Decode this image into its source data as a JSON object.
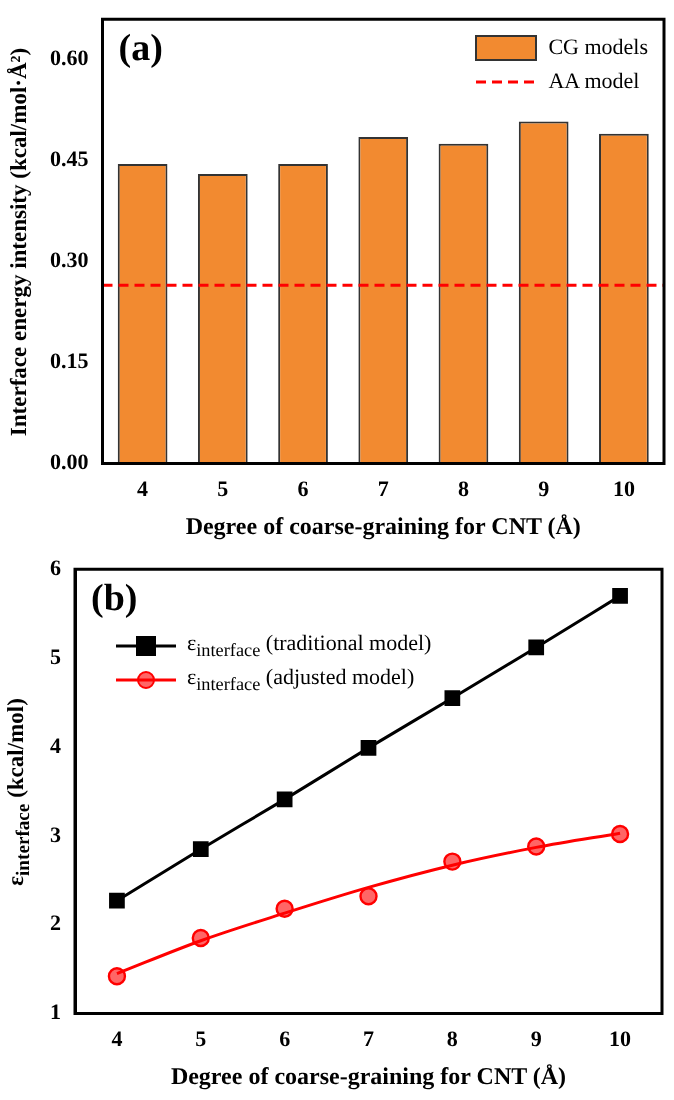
{
  "chart_data": [
    {
      "type": "bar",
      "title": "(a)",
      "xlabel": "Degree of coarse-graining for CNT (Å)",
      "ylabel": "Interface energy intensity (kcal/mol·Å²)",
      "categories": [
        "4",
        "5",
        "6",
        "7",
        "8",
        "9",
        "10"
      ],
      "series": [
        {
          "name": "CG models",
          "color": "#f28a30",
          "values": [
            0.445,
            0.43,
            0.445,
            0.485,
            0.475,
            0.508,
            0.49
          ]
        }
      ],
      "ylim": [
        0,
        0.66
      ],
      "yticks": [
        {
          "value": 0,
          "label": "0.00"
        },
        {
          "value": 0.15,
          "label": "0.15"
        },
        {
          "value": 0.3,
          "label": "0.30"
        },
        {
          "value": 0.45,
          "label": "0.45"
        },
        {
          "value": 0.6,
          "label": "0.60"
        }
      ],
      "ref_lines": [
        {
          "axis": "y",
          "value": 0.265,
          "label": "AA model",
          "color": "#ff0000",
          "line_style": "dashed"
        }
      ],
      "legend": "top right",
      "grid": false
    },
    {
      "type": "line",
      "title": "(b)",
      "xlabel": "Degree of coarse-graining for CNT (Å)",
      "ylabel": "ε$_{interface}$ (kcal/mol)",
      "x": [
        4,
        5,
        6,
        7,
        8,
        9,
        10
      ],
      "xlim": [
        3.5,
        10.5
      ],
      "xticks": [
        4,
        5,
        6,
        7,
        8,
        9,
        10
      ],
      "ylim": [
        1,
        6
      ],
      "yticks": [
        1,
        2,
        3,
        4,
        5,
        6
      ],
      "series": [
        {
          "name": "ε$_{interface}$ (traditional model)",
          "color": "#000000",
          "marker": "square",
          "values": [
            2.27,
            2.85,
            3.41,
            3.99,
            4.55,
            5.12,
            5.7
          ]
        },
        {
          "name": "ε$_{interface}$ (adjusted model)",
          "type": "scatter",
          "color": "#ff0000",
          "marker": "circle",
          "values": [
            1.42,
            1.85,
            2.18,
            2.32,
            2.71,
            2.88,
            3.02
          ]
        },
        {
          "type": "line",
          "color": "#ff0000",
          "marker": "none",
          "values": [
            1.45,
            1.82,
            2.13,
            2.42,
            2.67,
            2.87,
            3.03
          ]
        }
      ],
      "legend": "top left",
      "grid": false
    }
  ]
}
